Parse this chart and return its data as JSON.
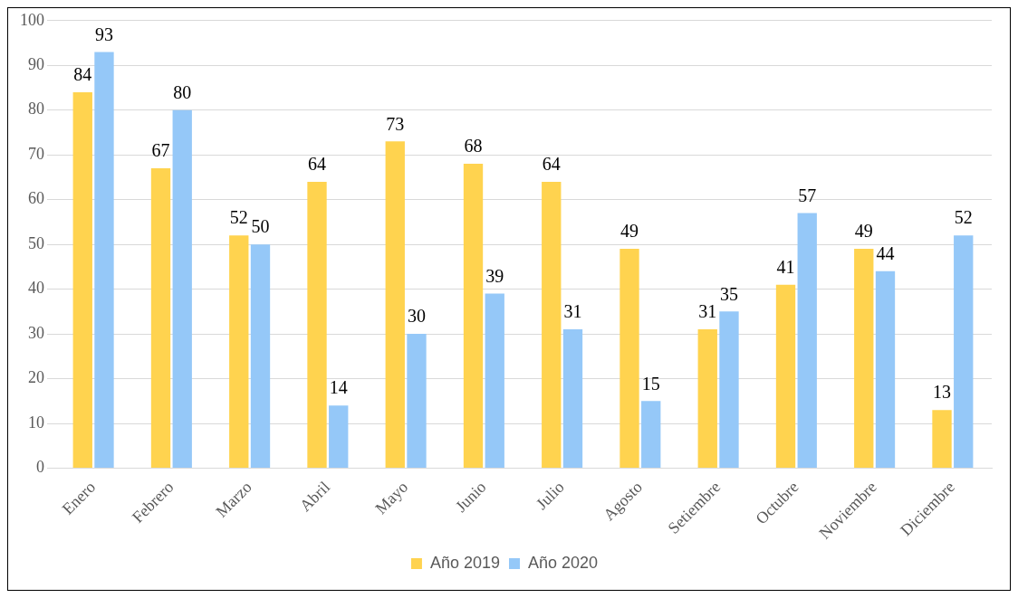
{
  "chart_data": {
    "type": "bar",
    "categories": [
      "Enero",
      "Febrero",
      "Marzo",
      "Abril",
      "Mayo",
      "Junio",
      "Julio",
      "Agosto",
      "Setiembre",
      "Octubre",
      "Noviembre",
      "Diciembre"
    ],
    "series": [
      {
        "name": "Año 2019",
        "color": "#ffd34f",
        "values": [
          84,
          67,
          52,
          64,
          73,
          68,
          64,
          49,
          31,
          41,
          49,
          13
        ]
      },
      {
        "name": "Año 2020",
        "color": "#95c8f8",
        "values": [
          93,
          80,
          50,
          14,
          30,
          39,
          31,
          15,
          35,
          57,
          44,
          52
        ]
      }
    ],
    "ylim": [
      0,
      100
    ],
    "yticks": [
      0,
      10,
      20,
      30,
      40,
      50,
      60,
      70,
      80,
      90,
      100
    ],
    "grid": "y",
    "legend": "bottom",
    "data_labels": true
  }
}
